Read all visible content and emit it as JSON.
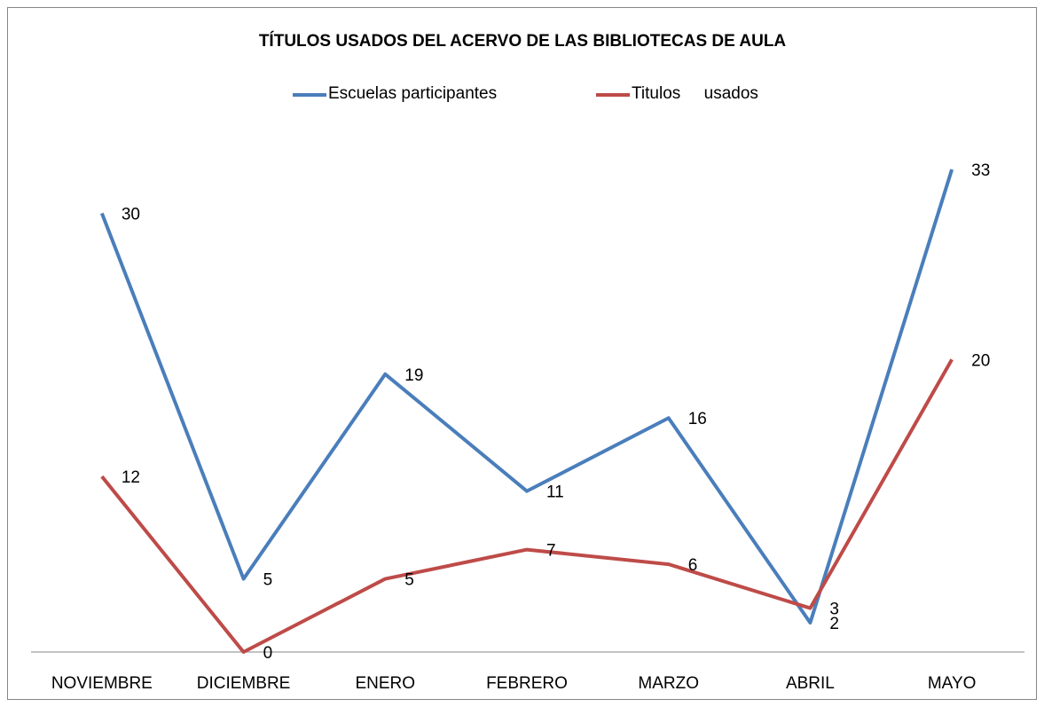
{
  "chart_data": {
    "type": "line",
    "title": "TÍTULOS USADOS DEL ACERVO DE LAS BIBLIOTECAS DE AULA",
    "categories": [
      "NOVIEMBRE",
      "DICIEMBRE",
      "ENERO",
      "FEBRERO",
      "MARZO",
      "ABRIL",
      "MAYO"
    ],
    "series": [
      {
        "name": "Escuelas participantes",
        "color": "#4a7ebb",
        "values": [
          30,
          5,
          19,
          11,
          16,
          2,
          33
        ]
      },
      {
        "name": "Titulos     usados",
        "color": "#be4b48",
        "values": [
          12,
          0,
          5,
          7,
          6,
          3,
          20
        ]
      }
    ],
    "ylim": [
      0,
      35
    ],
    "legend": "top"
  }
}
